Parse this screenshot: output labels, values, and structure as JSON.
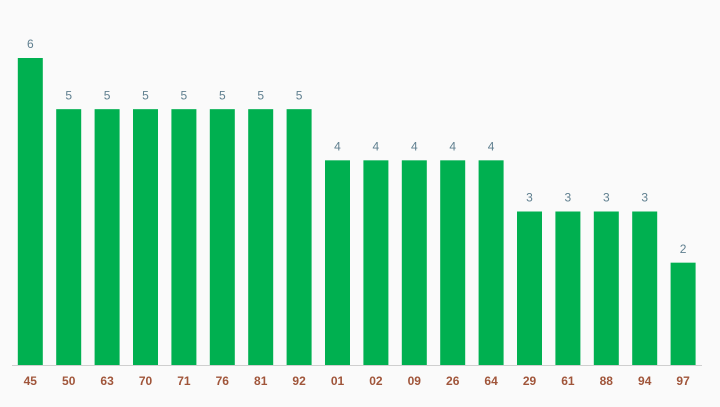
{
  "chart_data": {
    "type": "bar",
    "categories": [
      "45",
      "50",
      "63",
      "70",
      "71",
      "76",
      "81",
      "92",
      "01",
      "02",
      "09",
      "26",
      "64",
      "29",
      "61",
      "88",
      "94",
      "97"
    ],
    "values": [
      6,
      5,
      5,
      5,
      5,
      5,
      5,
      5,
      4,
      4,
      4,
      4,
      4,
      3,
      3,
      3,
      3,
      2
    ],
    "color": "#00b050"
  }
}
